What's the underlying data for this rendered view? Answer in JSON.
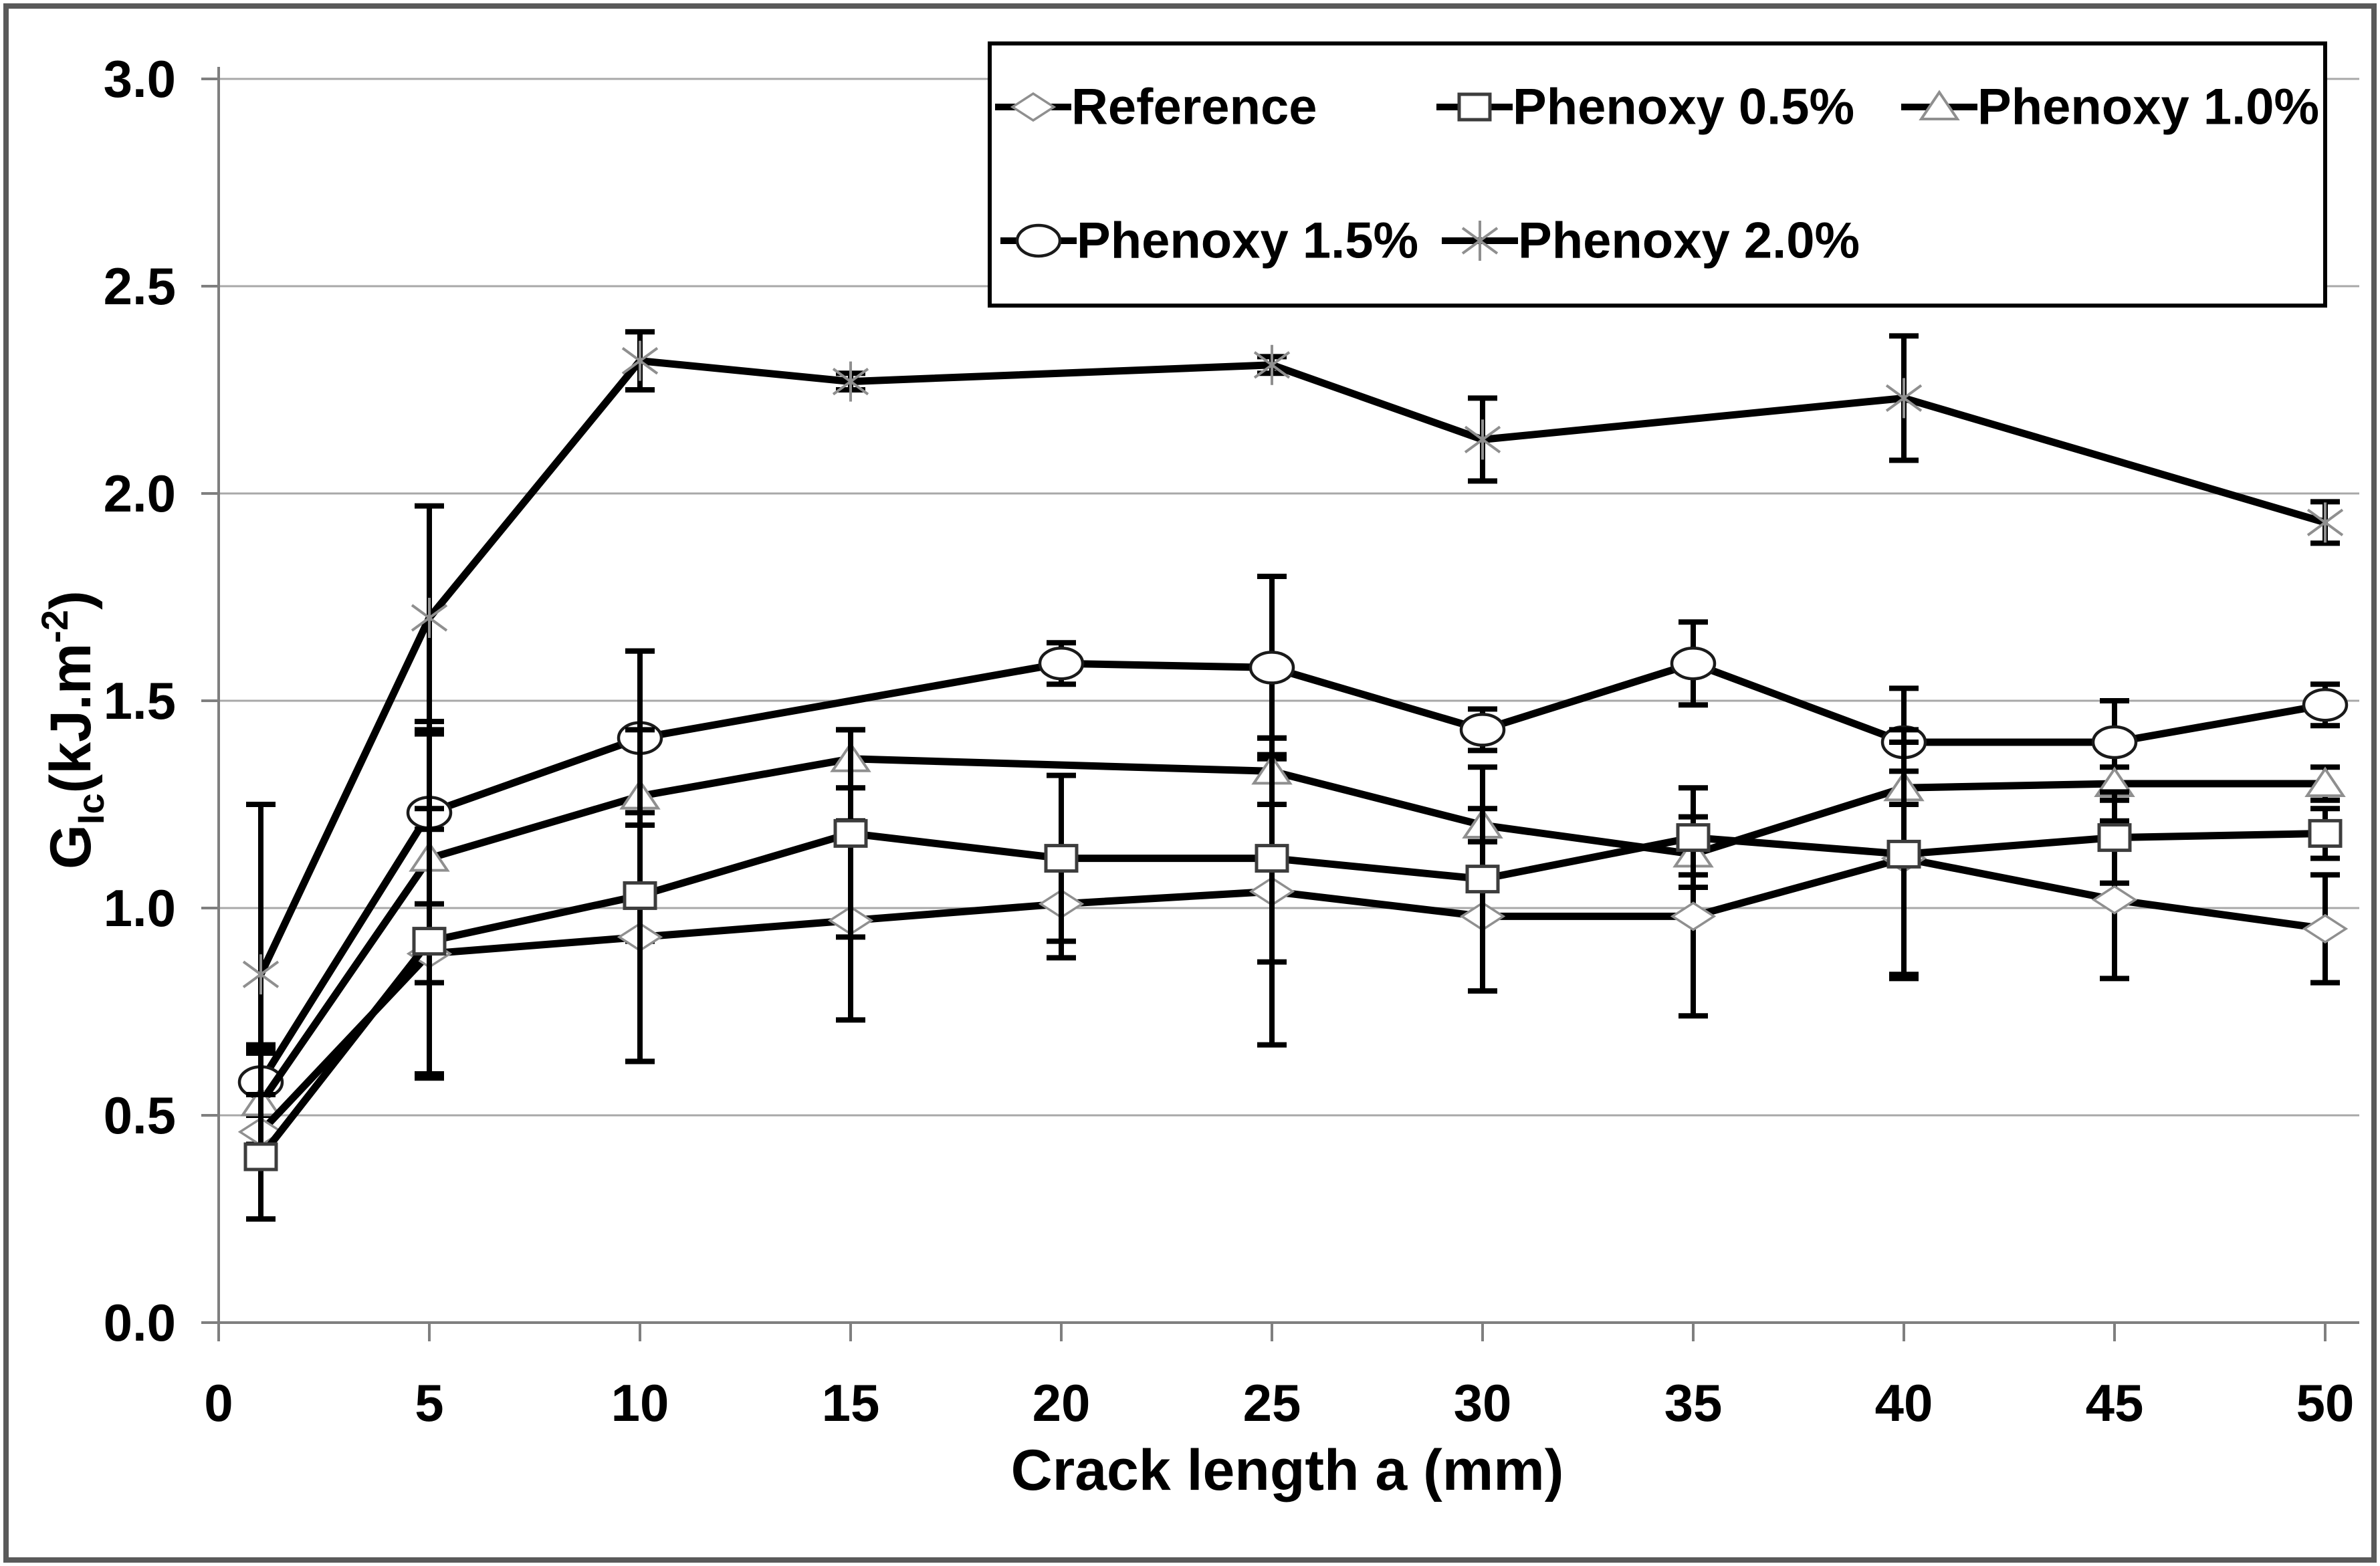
{
  "figure": {
    "kind": "scientific line chart with error bars",
    "background": "#ffffff",
    "border_color": "#5a5a5a"
  },
  "chart_data": {
    "type": "line",
    "title": "",
    "xlabel": "Crack length a (mm)",
    "ylabel": {
      "base": "G",
      "sub": "Ic",
      "mid": "(kJ.m",
      "sup": "-2",
      "end": ")"
    },
    "xlim": [
      0,
      50
    ],
    "ylim": [
      0.0,
      3.0
    ],
    "xticks": [
      0,
      5,
      10,
      15,
      20,
      25,
      30,
      35,
      40,
      45,
      50
    ],
    "yticks": [
      "0.0",
      "0.5",
      "1.0",
      "1.5",
      "2.0",
      "2.5",
      "3.0"
    ],
    "grid": "horizontal",
    "legend_position": "top",
    "legend_rows": [
      [
        "Reference",
        "Phenoxy 0.5%",
        "Phenoxy 1.0%"
      ],
      [
        "Phenoxy 1.5%",
        "Phenoxy 2.0%"
      ]
    ],
    "series": [
      {
        "name": "Reference",
        "marker": "diamond",
        "x": [
          1,
          5,
          10,
          15,
          20,
          25,
          30,
          35,
          40,
          45,
          50
        ],
        "y": [
          0.46,
          0.89,
          0.93,
          0.97,
          1.01,
          1.04,
          0.98,
          0.98,
          1.12,
          1.02,
          0.95
        ],
        "err": [
          0.21,
          0.3,
          0.3,
          0.24,
          0.13,
          0.37,
          0.18,
          0.24,
          0.28,
          0.19,
          0.13
        ]
      },
      {
        "name": "Phenoxy 0.5%",
        "marker": "square",
        "x": [
          1,
          5,
          10,
          15,
          20,
          25,
          30,
          35,
          40,
          45,
          50
        ],
        "y": [
          0.4,
          0.92,
          1.03,
          1.18,
          1.12,
          1.12,
          1.07,
          1.17,
          1.13,
          1.17,
          1.18
        ],
        "err": [
          0.15,
          0.32,
          0.4,
          0.25,
          0.2,
          0.25,
          0.27,
          0.12,
          0.3,
          0.11,
          0.06
        ]
      },
      {
        "name": "Phenoxy 1.0%",
        "marker": "triangle",
        "x": [
          1,
          5,
          10,
          15,
          25,
          30,
          35,
          40,
          45,
          50
        ],
        "y": [
          0.53,
          1.12,
          1.27,
          1.36,
          1.33,
          1.2,
          1.13,
          1.29,
          1.3,
          1.3
        ],
        "err": [
          0.12,
          0.3,
          0.35,
          0.07,
          0.08,
          0.04,
          0.05,
          0.04,
          0.04,
          0.04
        ]
      },
      {
        "name": "Phenoxy 1.5%",
        "marker": "circle",
        "x": [
          1,
          5,
          10,
          20,
          25,
          30,
          35,
          40,
          45,
          50
        ],
        "y": [
          0.58,
          1.23,
          1.41,
          1.59,
          1.58,
          1.43,
          1.59,
          1.4,
          1.4,
          1.49
        ],
        "err": [
          0.08,
          0.22,
          0.21,
          0.05,
          0.22,
          0.05,
          0.1,
          0.13,
          0.1,
          0.05
        ]
      },
      {
        "name": "Phenoxy 2.0%",
        "marker": "asterisk",
        "x": [
          1,
          5,
          10,
          15,
          25,
          30,
          40,
          50
        ],
        "y": [
          0.84,
          1.7,
          2.32,
          2.27,
          2.31,
          2.13,
          2.23,
          1.93
        ],
        "err": [
          0.41,
          0.27,
          0.07,
          0.02,
          0.02,
          0.1,
          0.15,
          0.05
        ]
      }
    ],
    "colors": {
      "line": "#000000",
      "grid": "#a8a8a8",
      "axis": "#7f7f7f",
      "text": "#000000",
      "marker_light": "#8f8f8f",
      "marker_dark": "#1a1a1a",
      "background": "#ffffff"
    }
  }
}
